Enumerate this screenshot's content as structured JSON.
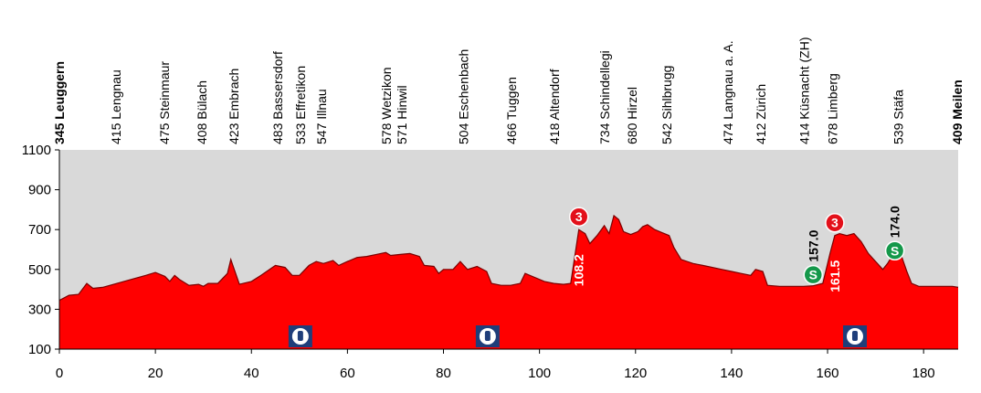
{
  "chart_data": {
    "type": "area",
    "x": [
      0,
      2,
      4,
      5.7,
      7,
      9,
      12,
      15,
      18,
      20,
      22,
      23,
      24,
      25,
      27,
      29,
      30,
      31,
      33,
      35,
      35.7,
      37.5,
      40,
      42,
      45,
      47,
      48.5,
      50,
      52,
      53.5,
      55,
      57,
      58.2,
      60,
      62,
      64,
      66,
      68,
      69,
      71,
      73,
      75,
      76,
      78,
      79,
      80,
      82,
      83.5,
      85,
      87,
      89,
      90,
      92,
      94,
      96,
      97,
      99,
      101,
      103,
      105,
      106.5,
      108.2,
      109.5,
      110.5,
      112,
      113.5,
      114.5,
      115.5,
      116.5,
      117.5,
      119,
      120.5,
      121.5,
      122.5,
      124,
      126,
      127,
      128,
      129.5,
      132,
      134,
      136,
      138,
      140,
      142,
      144,
      145,
      146.5,
      147.5,
      150,
      155,
      157,
      159,
      160.5,
      161.5,
      162.5,
      164,
      165.5,
      167,
      168.5,
      170,
      171.5,
      172.5,
      173.5,
      174.5,
      175.5,
      176.5,
      177.5,
      179,
      182,
      186,
      187.2
    ],
    "values": [
      345,
      370,
      375,
      430,
      405,
      410,
      430,
      450,
      470,
      485,
      465,
      440,
      470,
      450,
      420,
      425,
      415,
      430,
      430,
      480,
      550,
      425,
      440,
      470,
      520,
      510,
      470,
      470,
      520,
      540,
      530,
      545,
      520,
      540,
      560,
      565,
      575,
      585,
      570,
      575,
      580,
      565,
      520,
      515,
      480,
      500,
      500,
      540,
      500,
      515,
      490,
      430,
      420,
      420,
      430,
      480,
      460,
      440,
      430,
      425,
      430,
      700,
      680,
      630,
      670,
      720,
      680,
      770,
      750,
      690,
      675,
      690,
      715,
      725,
      700,
      680,
      670,
      610,
      550,
      530,
      520,
      510,
      500,
      490,
      480,
      470,
      500,
      490,
      420,
      415,
      415,
      418,
      430,
      580,
      670,
      680,
      670,
      680,
      640,
      580,
      540,
      500,
      530,
      570,
      600,
      560,
      490,
      430,
      415,
      415,
      415,
      410
    ],
    "color": "#ff0000",
    "xlim": [
      0,
      187.2
    ],
    "ylim": [
      100,
      1100
    ],
    "xticks": [
      0,
      20,
      40,
      60,
      80,
      100,
      120,
      140,
      160,
      180
    ],
    "yticks": [
      100,
      300,
      500,
      700,
      900,
      1100
    ],
    "places": [
      {
        "km": 0,
        "label": "345 Leuggern",
        "bold": true
      },
      {
        "km": 11.8,
        "label": "415 Lengnau"
      },
      {
        "km": 21.9,
        "label": "475 Steinmaur"
      },
      {
        "km": 29.7,
        "label": "408 Bülach"
      },
      {
        "km": 36.3,
        "label": "423 Embrach"
      },
      {
        "km": 45.5,
        "label": "483 Bassersdorf"
      },
      {
        "km": 50.2,
        "label": "533 Effretikon"
      },
      {
        "km": 54.6,
        "label": "547 Illnau"
      },
      {
        "km": 68.1,
        "label": "578 Wetzikon"
      },
      {
        "km": 71.3,
        "label": "571 Hinwil"
      },
      {
        "km": 84.2,
        "label": "504 Eschenbach"
      },
      {
        "km": 94.2,
        "label": "466 Tuggen"
      },
      {
        "km": 103.1,
        "label": "418 Altendorf"
      },
      {
        "km": 113.6,
        "label": "734 Schindellegi"
      },
      {
        "km": 119.3,
        "label": "680 Hirzel"
      },
      {
        "km": 126.5,
        "label": "542 Sihlbrugg"
      },
      {
        "km": 139.3,
        "label": "474 Langnau a. A."
      },
      {
        "km": 146.1,
        "label": "412 Zürich"
      },
      {
        "km": 155.1,
        "label": "414 Küsnacht (ZH)"
      },
      {
        "km": 161,
        "label": "678 Limberg"
      },
      {
        "km": 174.7,
        "label": "539 Stäfa"
      },
      {
        "km": 187,
        "label": "409 Meilen",
        "bold": true
      }
    ],
    "markers": {
      "symbols": [
        "3",
        "3",
        "S",
        "S"
      ],
      "km": [
        108.2,
        161.5,
        157,
        174
      ],
      "value_labels": [
        "108.2",
        "161.5",
        "157.0",
        "174.0"
      ]
    },
    "icon_km": [
      50.2,
      89.2,
      165.7
    ]
  }
}
